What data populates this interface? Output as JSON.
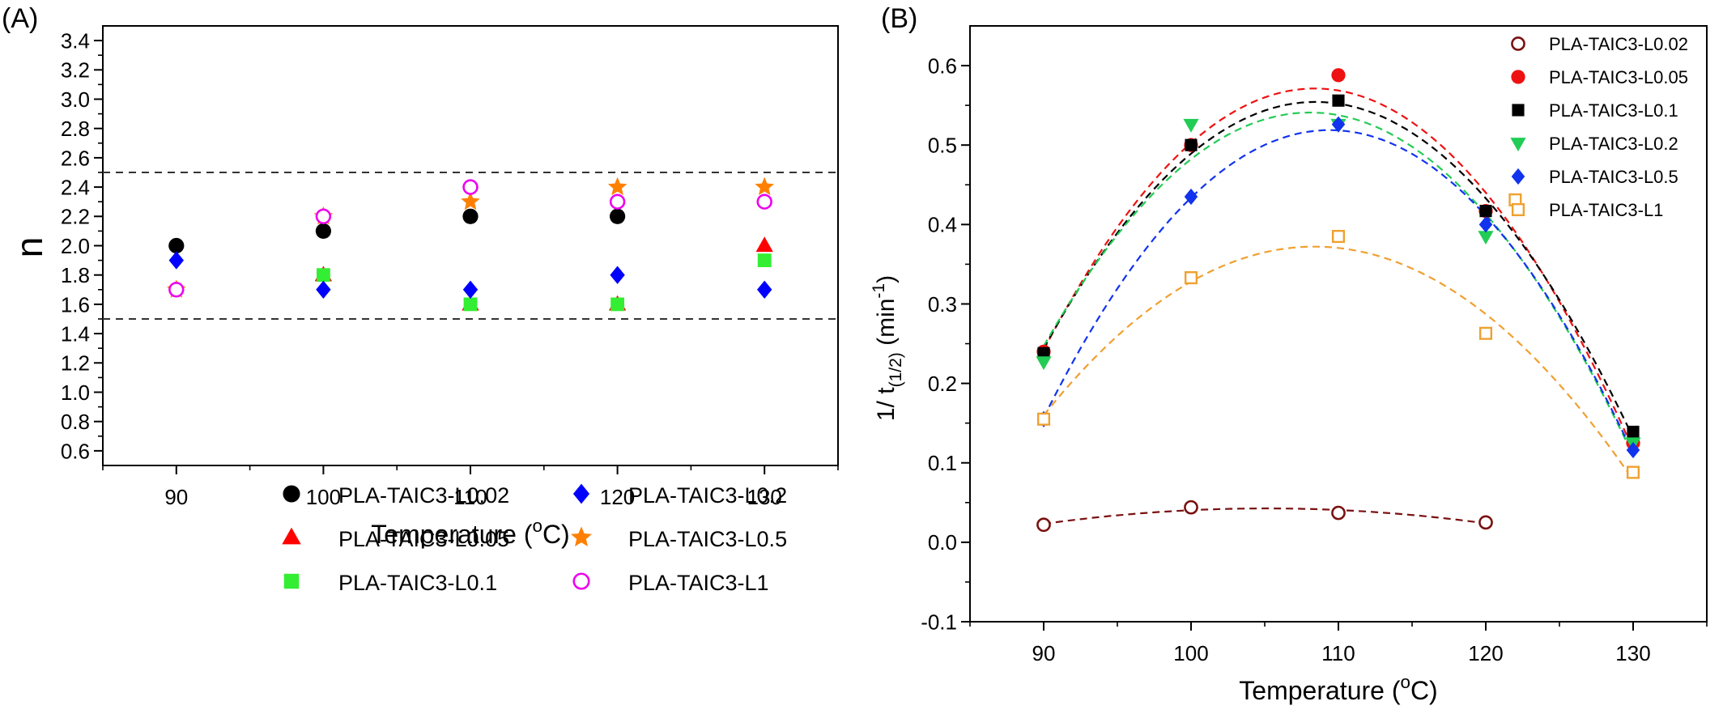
{
  "figure": {
    "panel_a_label": "(A)",
    "panel_b_label": "(B)"
  },
  "chart_data": [
    {
      "type": "scatter",
      "panel": "(A)",
      "xlabel": "Temperature (°C)",
      "xlabel_parts": {
        "pre": "Temperature (",
        "sup": "o",
        "post": "C)"
      },
      "ylabel": "n",
      "x_ticks": [
        90,
        100,
        110,
        120,
        130
      ],
      "y_ticks": [
        0.6,
        0.8,
        1.0,
        1.2,
        1.4,
        1.6,
        1.8,
        2.0,
        2.2,
        2.4,
        2.6,
        2.8,
        3.0,
        3.2,
        3.4
      ],
      "x_tick_labels": [
        "90",
        "100",
        "110",
        "120",
        "130"
      ],
      "y_tick_labels": [
        "0.6",
        "0.8",
        "1.0",
        "1.2",
        "1.4",
        "1.6",
        "1.8",
        "2.0",
        "2.2",
        "2.4",
        "2.6",
        "2.8",
        "3.0",
        "3.2",
        "3.4"
      ],
      "xlim": [
        85,
        135
      ],
      "ylim": [
        0.5,
        3.5
      ],
      "grid": false,
      "legend_position": "bottom-right",
      "legend_columns": 2,
      "reference_lines": [
        1.5,
        2.5
      ],
      "series": [
        {
          "name": "PLA-TAIC3-L0.02",
          "marker": "circle-filled",
          "color": "#000000",
          "x": [
            90,
            100,
            110,
            120
          ],
          "y": [
            2.0,
            2.1,
            2.2,
            2.2
          ]
        },
        {
          "name": "PLA-TAIC3-L0.05",
          "marker": "triangle-up",
          "color": "#ff0000",
          "x": [
            100,
            110,
            120,
            130
          ],
          "y": [
            1.8,
            1.6,
            1.6,
            2.0
          ]
        },
        {
          "name": "PLA-TAIC3-L0.1",
          "marker": "square-filled",
          "color": "#33ee33",
          "x": [
            100,
            110,
            120,
            130
          ],
          "y": [
            1.8,
            1.6,
            1.6,
            1.9
          ]
        },
        {
          "name": "PLA-TAIC3-L0.2",
          "marker": "diamond",
          "color": "#0000ff",
          "x": [
            90,
            100,
            110,
            120,
            130
          ],
          "y": [
            1.9,
            1.7,
            1.7,
            1.8,
            1.7
          ]
        },
        {
          "name": "PLA-TAIC3-L0.5",
          "marker": "star",
          "color": "#ff8000",
          "x": [
            90,
            100,
            110,
            120,
            130
          ],
          "y": [
            1.7,
            2.2,
            2.3,
            2.4,
            2.4
          ]
        },
        {
          "name": "PLA-TAIC3-L1",
          "marker": "circle-open",
          "color": "#ee00ee",
          "x": [
            90,
            100,
            110,
            120,
            130
          ],
          "y": [
            1.7,
            2.2,
            2.4,
            2.3,
            2.3
          ]
        }
      ]
    },
    {
      "type": "scatter",
      "panel": "(B)",
      "xlabel": "Temperature (°C)",
      "xlabel_parts": {
        "pre": "Temperature (",
        "sup": "o",
        "post": "C)"
      },
      "ylabel": "1/ t(1/2) (min-1)",
      "ylabel_parts": {
        "pre": "1/ t",
        "sub": "(1/2)",
        "mid": " (min",
        "sup": "-1",
        "post": ")"
      },
      "x_ticks": [
        90,
        100,
        110,
        120,
        130
      ],
      "y_ticks": [
        -0.1,
        0.0,
        0.1,
        0.2,
        0.3,
        0.4,
        0.5,
        0.6
      ],
      "x_tick_labels": [
        "90",
        "100",
        "110",
        "120",
        "130"
      ],
      "y_tick_labels": [
        "-0.1",
        "0.0",
        "0.1",
        "0.2",
        "0.3",
        "0.4",
        "0.5",
        "0.6"
      ],
      "xlim": [
        85,
        135
      ],
      "ylim": [
        -0.1,
        0.65
      ],
      "grid": false,
      "legend_position": "top-right",
      "fit_curves": "dashed quadratic fit per series",
      "series": [
        {
          "name": "PLA-TAIC3-L0.02",
          "marker": "circle-open",
          "color": "#7a1010",
          "x": [
            90,
            100,
            110,
            120
          ],
          "y": [
            0.022,
            0.044,
            0.037,
            0.025
          ]
        },
        {
          "name": "PLA-TAIC3-L0.05",
          "marker": "circle-filled",
          "color": "#ee1111",
          "x": [
            90,
            100,
            110,
            120,
            130
          ],
          "y": [
            0.24,
            0.5,
            0.588,
            0.417,
            0.125
          ]
        },
        {
          "name": "PLA-TAIC3-L0.1",
          "marker": "square-filled",
          "color": "#000000",
          "x": [
            90,
            100,
            110,
            120,
            130
          ],
          "y": [
            0.238,
            0.5,
            0.556,
            0.417,
            0.139
          ]
        },
        {
          "name": "PLA-TAIC3-L0.2",
          "marker": "triangle-down",
          "color": "#22cc55",
          "x": [
            90,
            100,
            110,
            120,
            130
          ],
          "y": [
            0.227,
            0.526,
            0.526,
            0.385,
            0.125
          ]
        },
        {
          "name": "PLA-TAIC3-L0.5",
          "marker": "diamond",
          "color": "#1133ee",
          "x": [
            90,
            100,
            110,
            120,
            130
          ],
          "y": [
            0.155,
            0.435,
            0.526,
            0.4,
            0.116
          ]
        },
        {
          "name": "PLA-TAIC3-L1",
          "marker": "square-open",
          "color": "#f0a030",
          "x": [
            90,
            100,
            110,
            120,
            122,
            130
          ],
          "y": [
            0.155,
            0.333,
            0.385,
            0.263,
            0.431,
            0.088
          ]
        }
      ]
    }
  ]
}
